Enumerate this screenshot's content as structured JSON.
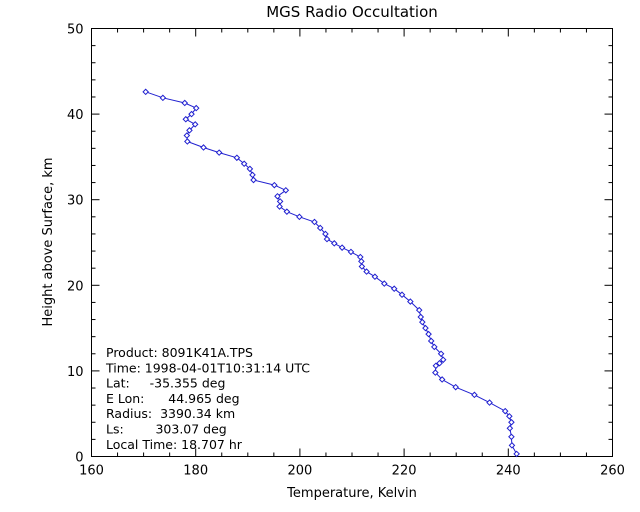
{
  "chart_data": {
    "type": "line",
    "title": "MGS Radio Occultation",
    "xlabel": "Temperature, Kelvin",
    "ylabel": "Height above Surface, km",
    "xlim": [
      160,
      260
    ],
    "ylim": [
      0,
      50
    ],
    "xticks": [
      "160",
      "180",
      "200",
      "220",
      "240",
      "260"
    ],
    "yticks": [
      "0",
      "10",
      "20",
      "30",
      "40",
      "50"
    ],
    "grid": false,
    "colors": {
      "series": "#2020d0",
      "axes": "#000000",
      "background": "#ffffff"
    },
    "series": [
      {
        "marker": "diamond",
        "x": [
          241.6,
          240.7,
          240.6,
          240.3,
          240.6,
          240.2,
          239.4,
          236.4,
          233.5,
          229.9,
          227.3,
          226.0,
          226.1,
          226.8,
          227.5,
          227.1,
          225.8,
          225.2,
          224.7,
          224.1,
          223.5,
          223.2,
          222.9,
          221.2,
          219.6,
          218.1,
          216.2,
          214.4,
          212.8,
          211.9,
          211.8,
          211.6,
          209.8,
          208.1,
          206.6,
          205.2,
          204.9,
          203.9,
          202.8,
          199.9,
          197.5,
          196.1,
          196.2,
          195.7,
          197.3,
          195.1,
          191.1,
          190.9,
          190.4,
          189.3,
          187.9,
          184.5,
          181.5,
          178.4,
          178.3,
          178.8,
          179.9,
          178.1,
          179.2,
          180.1,
          177.9,
          173.7,
          170.4
        ],
        "y": [
          0.3,
          1.3,
          2.3,
          3.3,
          4.0,
          4.7,
          5.3,
          6.3,
          7.2,
          8.1,
          9.0,
          9.8,
          10.6,
          10.9,
          11.3,
          12.0,
          12.8,
          13.5,
          14.3,
          15.0,
          15.7,
          16.3,
          17.1,
          18.1,
          18.9,
          19.6,
          20.2,
          21.0,
          21.6,
          22.2,
          22.8,
          23.3,
          23.9,
          24.4,
          24.9,
          25.4,
          26.0,
          26.7,
          27.4,
          28.0,
          28.6,
          29.2,
          29.8,
          30.4,
          31.1,
          31.7,
          32.3,
          32.9,
          33.6,
          34.2,
          34.9,
          35.5,
          36.1,
          36.8,
          37.5,
          38.1,
          38.8,
          39.4,
          40.0,
          40.7,
          41.3,
          41.9,
          42.6
        ]
      }
    ],
    "annotations": [
      "Product: 8091K41A.TPS",
      "Time: 1998-04-01T10:31:14 UTC",
      "Lat:     -35.355 deg",
      "E Lon:      44.965 deg",
      "Radius:  3390.34 km",
      "Ls:        303.07 deg",
      "Local Time: 18.707 hr"
    ]
  }
}
